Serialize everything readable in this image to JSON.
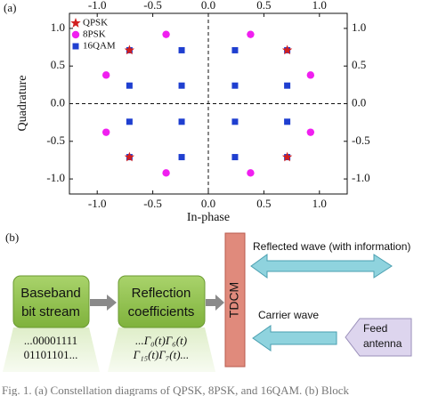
{
  "chart_data": {
    "type": "scatter",
    "panel_label": "(a)",
    "x_label": "In-phase",
    "y_label": "Quadrature",
    "xlim": [
      -1.25,
      1.25
    ],
    "ylim": [
      -1.2,
      1.2
    ],
    "xticks": [
      {
        "value": -1.0,
        "label": "-1.0"
      },
      {
        "value": -0.5,
        "label": "-0.5"
      },
      {
        "value": 0,
        "label": "0.0"
      },
      {
        "value": 0.5,
        "label": "0.5"
      },
      {
        "value": 1.0,
        "label": "1.0"
      }
    ],
    "yticks": [
      {
        "value": -1.0,
        "label": "-1.0"
      },
      {
        "value": -0.5,
        "label": "-0.5"
      },
      {
        "value": 0,
        "label": "0.0"
      },
      {
        "value": 0.5,
        "label": "0.5"
      },
      {
        "value": 1.0,
        "label": "1.0"
      }
    ],
    "x_reference": 0,
    "y_reference": 0,
    "legend": "upper left",
    "series": [
      {
        "name": "QPSK",
        "color": "#d11f1f",
        "marker": "star",
        "x": [
          -0.71,
          0.71,
          -0.71,
          0.71
        ],
        "values": [
          0.71,
          0.71,
          -0.71,
          -0.71
        ]
      },
      {
        "name": "8PSK",
        "color": "#f01ff0",
        "marker": "circle",
        "x": [
          0.92,
          0.38,
          -0.38,
          -0.92,
          -0.92,
          -0.38,
          0.38,
          0.92
        ],
        "values": [
          0.38,
          0.92,
          0.92,
          0.38,
          -0.38,
          -0.92,
          -0.92,
          -0.38
        ]
      },
      {
        "name": "16QAM",
        "color": "#1f3fd0",
        "marker": "square",
        "x": [
          -0.71,
          -0.24,
          0.24,
          0.71,
          -0.71,
          -0.24,
          0.24,
          0.71,
          -0.71,
          -0.24,
          0.24,
          0.71,
          -0.71,
          -0.24,
          0.24,
          0.71
        ],
        "values": [
          0.71,
          0.71,
          0.71,
          0.71,
          0.24,
          0.24,
          0.24,
          0.24,
          -0.24,
          -0.24,
          -0.24,
          -0.24,
          -0.71,
          -0.71,
          -0.71,
          -0.71
        ]
      }
    ]
  },
  "diagram": {
    "label": "(b)",
    "baseband": {
      "lines": [
        "Baseband",
        "bit stream"
      ],
      "bits": [
        "...00001111",
        "01101101..."
      ]
    },
    "reflection": {
      "lines": [
        "Reflection",
        "coefficients"
      ],
      "symbols": [
        "...Γ₀(t)Γ₆(t)",
        "Γ₁₅(t)Γ₇(t)..."
      ]
    },
    "tdcm": "TDCM",
    "reflected_wave": "Reflected wave (with information)",
    "carrier_wave": "Carrier wave",
    "feed_antenna": [
      "Feed",
      "antenna"
    ]
  },
  "caption": "Fig. 1.   (a) Constellation diagrams of QPSK, 8PSK, and 16QAM. (b) Block"
}
